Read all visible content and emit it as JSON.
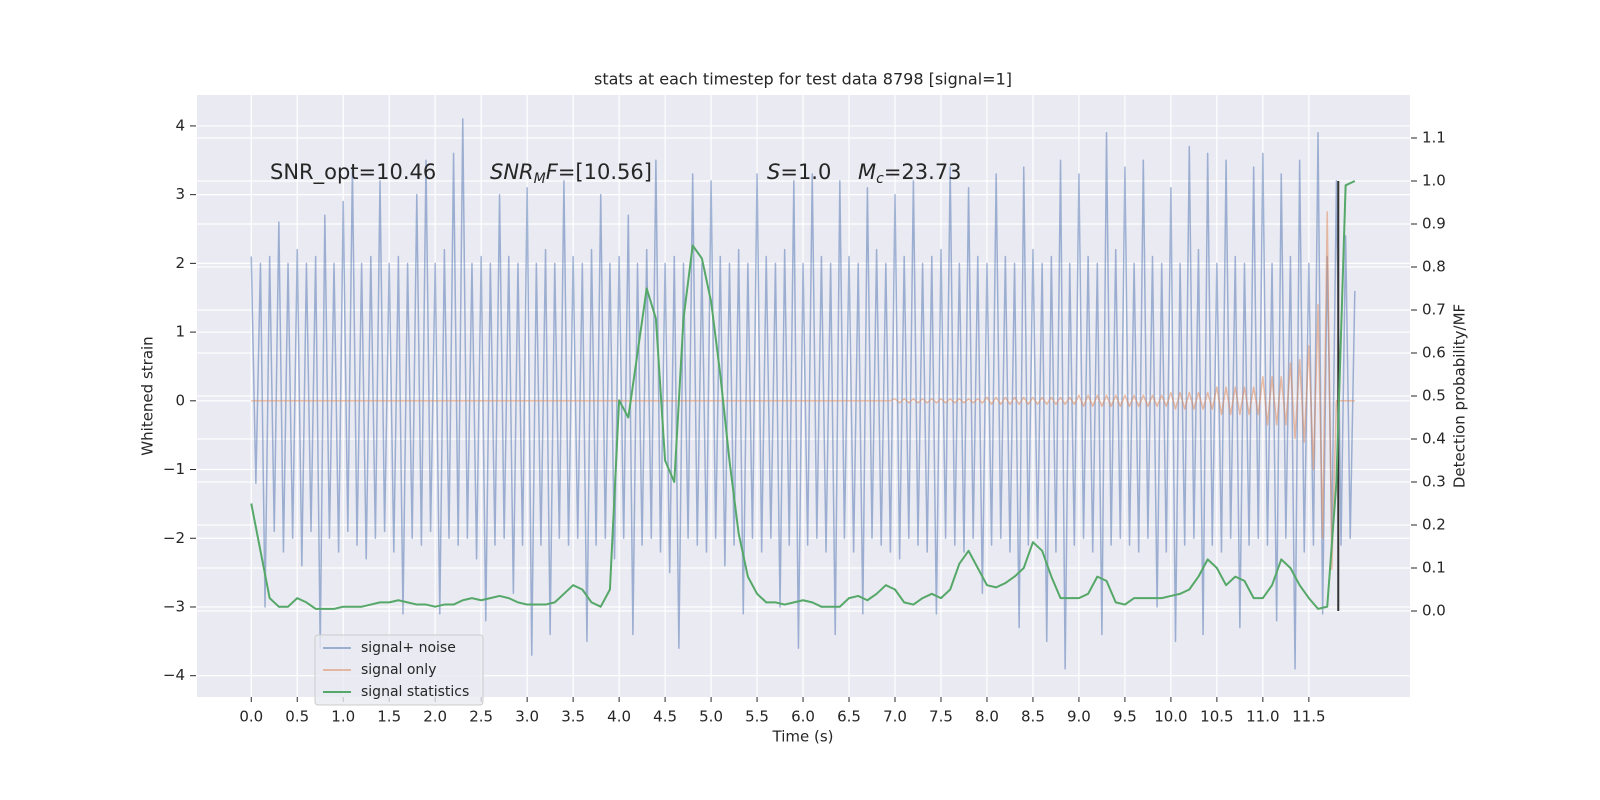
{
  "chart_data": {
    "type": "line",
    "title": "stats at each timestep for test data 8798 [signal=1]",
    "xlabel": "Time (s)",
    "ylabel": "Whitened strain",
    "y2label": "Detection probability/MF",
    "xlim": [
      -0.59,
      12.6
    ],
    "ylim": [
      -4.31,
      4.45
    ],
    "y2lim": [
      -0.2,
      1.2
    ],
    "xticks": [
      {
        "value": 0,
        "label": "0.0"
      },
      {
        "value": 0.5,
        "label": "0.5"
      },
      {
        "value": 1,
        "label": "1.0"
      },
      {
        "value": 1.5,
        "label": "1.5"
      },
      {
        "value": 2,
        "label": "2.0"
      },
      {
        "value": 2.5,
        "label": "2.5"
      },
      {
        "value": 3,
        "label": "3.0"
      },
      {
        "value": 3.5,
        "label": "3.5"
      },
      {
        "value": 4,
        "label": "4.0"
      },
      {
        "value": 4.5,
        "label": "4.5"
      },
      {
        "value": 5,
        "label": "5.0"
      },
      {
        "value": 5.5,
        "label": "5.5"
      },
      {
        "value": 6,
        "label": "6.0"
      },
      {
        "value": 6.5,
        "label": "6.5"
      },
      {
        "value": 7,
        "label": "7.0"
      },
      {
        "value": 7.5,
        "label": "7.5"
      },
      {
        "value": 8,
        "label": "8.0"
      },
      {
        "value": 8.5,
        "label": "8.5"
      },
      {
        "value": 9,
        "label": "9.0"
      },
      {
        "value": 9.5,
        "label": "9.5"
      },
      {
        "value": 10,
        "label": "10.0"
      },
      {
        "value": 10.5,
        "label": "10.5"
      },
      {
        "value": 11,
        "label": "11.0"
      },
      {
        "value": 11.5,
        "label": "11.5"
      }
    ],
    "yticks": [
      {
        "value": -4,
        "label": "−4"
      },
      {
        "value": -3,
        "label": "−3"
      },
      {
        "value": -2,
        "label": "−2"
      },
      {
        "value": -1,
        "label": "−1"
      },
      0,
      1,
      2,
      3,
      4
    ],
    "y2ticks": [
      {
        "value": 0,
        "label": "0.0"
      },
      {
        "value": 0.1,
        "label": "0.1"
      },
      {
        "value": 0.2,
        "label": "0.2"
      },
      {
        "value": 0.3,
        "label": "0.3"
      },
      {
        "value": 0.4,
        "label": "0.4"
      },
      {
        "value": 0.5,
        "label": "0.5"
      },
      {
        "value": 0.6,
        "label": "0.6"
      },
      {
        "value": 0.7,
        "label": "0.7"
      },
      {
        "value": 0.8,
        "label": "0.8"
      },
      {
        "value": 0.9,
        "label": "0.9"
      },
      {
        "value": 1,
        "label": "1.0"
      },
      {
        "value": 1.1,
        "label": "1.1"
      }
    ],
    "grid": true,
    "y2grid": true,
    "legend": "lower left",
    "x": [
      0,
      0.05,
      0.1,
      0.15,
      0.2,
      0.25,
      0.3,
      0.35,
      0.4,
      0.45,
      0.5,
      0.55,
      0.6,
      0.65,
      0.7,
      0.75,
      0.8,
      0.85,
      0.9,
      0.95,
      1,
      1.05,
      1.1,
      1.15,
      1.2,
      1.25,
      1.3,
      1.35,
      1.4,
      1.45,
      1.5,
      1.55,
      1.6,
      1.65,
      1.7,
      1.75,
      1.8,
      1.85,
      1.9,
      1.95,
      2,
      2.05,
      2.1,
      2.15,
      2.2,
      2.25,
      2.3,
      2.35,
      2.4,
      2.45,
      2.5,
      2.55,
      2.6,
      2.65,
      2.7,
      2.75,
      2.8,
      2.85,
      2.9,
      2.95,
      3,
      3.05,
      3.1,
      3.15,
      3.2,
      3.25,
      3.3,
      3.35,
      3.4,
      3.45,
      3.5,
      3.55,
      3.6,
      3.65,
      3.7,
      3.75,
      3.8,
      3.85,
      3.9,
      3.95,
      4,
      4.05,
      4.1,
      4.15,
      4.2,
      4.25,
      4.3,
      4.35,
      4.4,
      4.45,
      4.5,
      4.55,
      4.6,
      4.65,
      4.7,
      4.75,
      4.8,
      4.85,
      4.9,
      4.95,
      5,
      5.05,
      5.1,
      5.15,
      5.2,
      5.25,
      5.3,
      5.35,
      5.4,
      5.45,
      5.5,
      5.55,
      5.6,
      5.65,
      5.7,
      5.75,
      5.8,
      5.85,
      5.9,
      5.95,
      6,
      6.05,
      6.1,
      6.15,
      6.2,
      6.25,
      6.3,
      6.35,
      6.4,
      6.45,
      6.5,
      6.55,
      6.6,
      6.65,
      6.7,
      6.75,
      6.8,
      6.85,
      6.9,
      6.95,
      7,
      7.05,
      7.1,
      7.15,
      7.2,
      7.25,
      7.3,
      7.35,
      7.4,
      7.45,
      7.5,
      7.55,
      7.6,
      7.65,
      7.7,
      7.75,
      7.8,
      7.85,
      7.9,
      7.95,
      8,
      8.05,
      8.1,
      8.15,
      8.2,
      8.25,
      8.3,
      8.35,
      8.4,
      8.45,
      8.5,
      8.55,
      8.6,
      8.65,
      8.7,
      8.75,
      8.8,
      8.85,
      8.9,
      8.95,
      9,
      9.05,
      9.1,
      9.15,
      9.2,
      9.25,
      9.3,
      9.35,
      9.4,
      9.45,
      9.5,
      9.55,
      9.6,
      9.65,
      9.7,
      9.75,
      9.8,
      9.85,
      9.9,
      9.95,
      10,
      10.05,
      10.1,
      10.15,
      10.2,
      10.25,
      10.3,
      10.35,
      10.4,
      10.45,
      10.5,
      10.55,
      10.6,
      10.65,
      10.7,
      10.75,
      10.8,
      10.85,
      10.9,
      10.95,
      11,
      11.05,
      11.1,
      11.15,
      11.2,
      11.25,
      11.3,
      11.35,
      11.4,
      11.45,
      11.5,
      11.55,
      11.6,
      11.65,
      11.7,
      11.75,
      11.8,
      11.85,
      11.9,
      11.95,
      12
    ],
    "series": [
      {
        "name": "signal+ noise",
        "color": "#4c72b0",
        "opacity": 0.5,
        "values": [
          2.1,
          -1.2,
          2.0,
          -3.0,
          2.1,
          -1.9,
          2.6,
          -2.2,
          2.0,
          -2.0,
          2.2,
          -2.4,
          2.0,
          -1.9,
          2.1,
          -3.6,
          2.7,
          -2.0,
          2.0,
          -2.2,
          2.9,
          -1.9,
          3.4,
          -2.1,
          2.0,
          -2.3,
          2.1,
          -2.0,
          3.2,
          -1.9,
          2.0,
          -2.2,
          2.1,
          -3.1,
          2.0,
          -2.0,
          3.0,
          -2.1,
          3.5,
          -1.9,
          2.0,
          -3.1,
          2.2,
          -2.0,
          3.6,
          -2.1,
          4.1,
          -2.0,
          2.0,
          -2.3,
          2.1,
          -3.2,
          2.0,
          -2.1,
          3.0,
          -2.0,
          2.1,
          -2.8,
          2.0,
          -2.1,
          3.1,
          -3.7,
          2.0,
          -2.1,
          2.2,
          -3.4,
          2.0,
          -2.0,
          3.2,
          -2.1,
          2.1,
          -2.0,
          2.0,
          -3.5,
          2.2,
          -2.1,
          3.0,
          -2.0,
          2.0,
          -2.3,
          2.1,
          -2.0,
          2.7,
          -3.4,
          2.0,
          -2.1,
          2.2,
          -2.0,
          3.5,
          -2.2,
          2.0,
          -2.5,
          2.1,
          -3.6,
          2.0,
          -2.0,
          3.3,
          -2.1,
          2.0,
          -2.2,
          3.2,
          -2.0,
          2.1,
          -2.4,
          2.0,
          -2.1,
          2.2,
          -3.1,
          2.0,
          -2.0,
          3.3,
          -2.2,
          2.1,
          -2.0,
          2.0,
          -3.0,
          2.2,
          -2.1,
          3.2,
          -3.6,
          2.0,
          -2.1,
          3.3,
          -2.0,
          2.1,
          -2.2,
          2.0,
          -3.4,
          3.2,
          -2.0,
          2.1,
          -2.2,
          2.0,
          -3.1,
          3.1,
          -2.0,
          2.2,
          -2.1,
          2.0,
          -2.2,
          3.0,
          -2.3,
          2.1,
          -2.0,
          3.2,
          -2.1,
          2.0,
          -2.2,
          2.1,
          -3.1,
          2.2,
          -2.0,
          3.4,
          -2.1,
          2.0,
          -2.2,
          3.1,
          -2.0,
          2.1,
          -2.8,
          2.0,
          -2.1,
          3.3,
          -2.0,
          2.1,
          -2.2,
          2.0,
          -3.3,
          3.4,
          -2.1,
          2.2,
          -2.0,
          2.0,
          -3.5,
          2.1,
          -2.2,
          3.5,
          -3.9,
          2.0,
          -2.1,
          3.3,
          -2.0,
          2.1,
          -2.2,
          2.0,
          -3.4,
          3.9,
          -2.1,
          2.2,
          -2.0,
          3.4,
          -2.1,
          2.0,
          -2.2,
          3.5,
          -2.0,
          2.1,
          -3.0,
          2.0,
          -2.2,
          3.1,
          -3.5,
          2.0,
          -2.1,
          3.7,
          -2.0,
          2.2,
          -3.4,
          3.6,
          -2.1,
          2.0,
          -2.2,
          3.5,
          -2.0,
          2.1,
          -3.3,
          2.0,
          -2.1,
          3.4,
          -2.0,
          3.6,
          -2.1,
          2.0,
          -3.2,
          3.3,
          -2.0,
          2.1,
          -3.9,
          3.5,
          -2.2,
          2.0,
          -2.1,
          3.9,
          -3.1,
          2.1,
          -2.0,
          3.2,
          -2.1,
          2.4,
          -2.0,
          1.6
        ]
      },
      {
        "name": "signal only",
        "color": "#dd8452",
        "opacity": 0.5,
        "values": [
          0,
          0,
          0,
          0,
          0,
          0,
          0,
          0,
          0,
          0,
          0,
          0,
          0,
          0,
          0,
          0,
          0,
          0,
          0,
          0,
          0,
          0,
          0,
          0,
          0,
          0,
          0,
          0,
          0,
          0,
          0,
          0,
          0,
          0,
          0,
          0,
          0,
          0,
          0,
          0,
          0,
          0,
          0,
          0,
          0,
          0,
          0,
          0,
          0,
          0,
          0,
          0,
          0,
          0,
          0,
          0,
          0,
          0,
          0,
          0,
          0,
          0,
          0,
          0,
          0,
          0,
          0,
          0,
          0,
          0,
          0,
          0,
          0,
          0,
          0,
          0,
          0,
          0,
          0,
          0,
          0,
          0,
          0,
          0,
          0,
          0,
          0,
          0,
          0,
          0,
          0,
          0,
          0,
          0,
          0,
          0,
          0,
          0,
          0,
          0,
          0,
          0,
          0,
          0,
          0,
          0,
          0,
          0,
          0,
          0,
          0,
          0,
          0,
          0,
          0,
          0,
          0,
          0,
          0,
          0,
          0,
          0,
          0,
          0,
          0,
          0,
          0,
          0,
          0,
          0,
          0,
          0,
          0,
          0,
          0,
          0,
          0,
          0,
          0,
          0,
          0.03,
          -0.03,
          0.03,
          -0.03,
          0.03,
          -0.03,
          0.03,
          -0.03,
          0.03,
          -0.03,
          0.03,
          -0.03,
          0.03,
          -0.03,
          0.03,
          -0.03,
          0.03,
          -0.03,
          0.03,
          -0.03,
          0.05,
          -0.05,
          0.05,
          -0.05,
          0.05,
          -0.05,
          0.05,
          -0.05,
          0.05,
          -0.05,
          0.05,
          -0.05,
          0.05,
          -0.05,
          0.05,
          -0.05,
          0.05,
          -0.05,
          0.05,
          -0.05,
          0.08,
          -0.08,
          0.08,
          -0.08,
          0.08,
          -0.08,
          0.08,
          -0.08,
          0.08,
          -0.08,
          0.08,
          -0.08,
          0.08,
          -0.08,
          0.08,
          -0.08,
          0.08,
          -0.08,
          0.08,
          -0.08,
          0.12,
          -0.12,
          0.12,
          -0.12,
          0.12,
          -0.12,
          0.12,
          -0.12,
          0.12,
          -0.12,
          0.2,
          -0.2,
          0.2,
          -0.2,
          0.2,
          -0.2,
          0.2,
          -0.2,
          0.2,
          -0.2,
          0.35,
          -0.35,
          0.35,
          -0.35,
          0.35,
          -0.35,
          0.55,
          -0.55,
          0.6,
          -0.6,
          0.8,
          -1.0,
          1.4,
          -2.0,
          2.75,
          -2.45,
          0,
          0,
          0,
          0,
          0
        ]
      },
      {
        "name": "signal statistics",
        "color": "#55a868",
        "axis": "y2",
        "x": [
          0,
          0.1,
          0.2,
          0.3,
          0.4,
          0.5,
          0.6,
          0.7,
          0.8,
          0.9,
          1,
          1.1,
          1.2,
          1.3,
          1.4,
          1.5,
          1.6,
          1.7,
          1.8,
          1.9,
          2,
          2.1,
          2.2,
          2.3,
          2.4,
          2.5,
          2.6,
          2.7,
          2.8,
          2.9,
          3,
          3.1,
          3.2,
          3.3,
          3.4,
          3.5,
          3.6,
          3.7,
          3.8,
          3.9,
          4,
          4.1,
          4.2,
          4.3,
          4.4,
          4.5,
          4.6,
          4.7,
          4.8,
          4.9,
          5,
          5.1,
          5.2,
          5.3,
          5.4,
          5.5,
          5.6,
          5.7,
          5.8,
          5.9,
          6,
          6.1,
          6.2,
          6.3,
          6.4,
          6.5,
          6.6,
          6.7,
          6.8,
          6.9,
          7,
          7.1,
          7.2,
          7.3,
          7.4,
          7.5,
          7.6,
          7.7,
          7.8,
          7.9,
          8,
          8.1,
          8.2,
          8.3,
          8.4,
          8.5,
          8.6,
          8.7,
          8.8,
          8.9,
          9,
          9.1,
          9.2,
          9.3,
          9.4,
          9.5,
          9.6,
          9.7,
          9.8,
          9.9,
          10,
          10.1,
          10.2,
          10.3,
          10.4,
          10.5,
          10.6,
          10.7,
          10.8,
          10.9,
          11,
          11.1,
          11.2,
          11.3,
          11.4,
          11.5,
          11.6,
          11.7,
          11.8,
          11.9,
          12
        ],
        "values": [
          0.25,
          0.14,
          0.03,
          0.01,
          0.01,
          0.03,
          0.02,
          0.005,
          0.005,
          0.005,
          0.01,
          0.01,
          0.01,
          0.015,
          0.02,
          0.02,
          0.025,
          0.02,
          0.015,
          0.015,
          0.01,
          0.015,
          0.015,
          0.025,
          0.03,
          0.025,
          0.03,
          0.035,
          0.03,
          0.02,
          0.015,
          0.015,
          0.015,
          0.02,
          0.04,
          0.06,
          0.05,
          0.02,
          0.01,
          0.05,
          0.49,
          0.45,
          0.6,
          0.75,
          0.68,
          0.35,
          0.3,
          0.68,
          0.85,
          0.82,
          0.72,
          0.55,
          0.35,
          0.18,
          0.08,
          0.04,
          0.02,
          0.02,
          0.015,
          0.02,
          0.025,
          0.02,
          0.01,
          0.01,
          0.01,
          0.03,
          0.035,
          0.025,
          0.04,
          0.06,
          0.05,
          0.02,
          0.015,
          0.03,
          0.04,
          0.03,
          0.05,
          0.11,
          0.14,
          0.1,
          0.06,
          0.055,
          0.065,
          0.08,
          0.1,
          0.16,
          0.14,
          0.08,
          0.03,
          0.03,
          0.03,
          0.04,
          0.08,
          0.07,
          0.02,
          0.015,
          0.03,
          0.03,
          0.03,
          0.03,
          0.035,
          0.04,
          0.05,
          0.08,
          0.12,
          0.1,
          0.06,
          0.08,
          0.07,
          0.03,
          0.03,
          0.06,
          0.12,
          0.1,
          0.06,
          0.03,
          0.005,
          0.01,
          0.3,
          0.99,
          1.0
        ]
      }
    ],
    "vlines": [
      {
        "x": 11.82,
        "ymin": 0,
        "ymax": 1,
        "axis": "y2",
        "color": "#333333"
      }
    ],
    "annotations": [
      [
        {
          "text": "SNR_opt=10.46"
        }
      ],
      [
        {
          "text": "SNR",
          "italic": true
        },
        {
          "text": "M",
          "italic": true,
          "sub": true
        },
        {
          "text": "F",
          "italic": true
        },
        {
          "text": "=[10.56]"
        }
      ],
      [
        {
          "text": "S",
          "italic": true
        },
        {
          "text": "=1.0"
        }
      ],
      [
        {
          "text": "M",
          "italic": true
        },
        {
          "text": "c",
          "italic": true,
          "sub": true
        },
        {
          "text": "=23.73"
        }
      ]
    ]
  }
}
